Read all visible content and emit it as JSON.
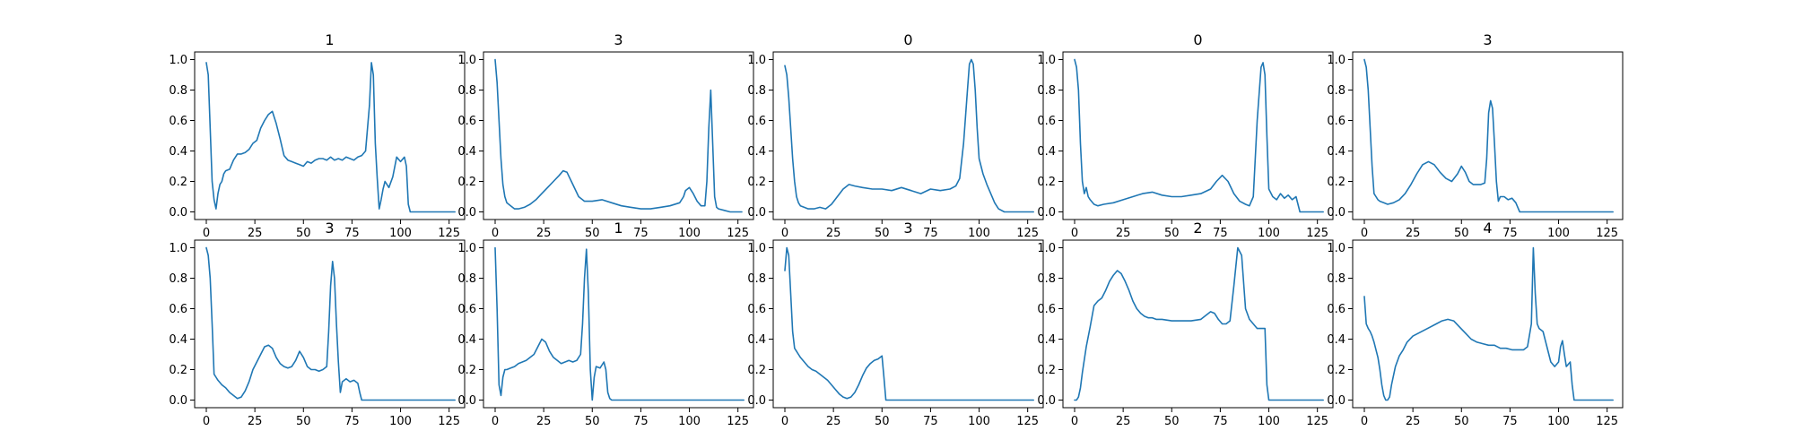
{
  "figure": {
    "line_color": "#1f77b4"
  },
  "chart_data": [
    {
      "type": "line",
      "title": "1",
      "xlim": [
        -6,
        133
      ],
      "ylim": [
        -0.05,
        1.05
      ],
      "x_ticks": [
        0,
        25,
        50,
        75,
        100,
        125
      ],
      "y_ticks": [
        0.0,
        0.2,
        0.4,
        0.6,
        0.8,
        1.0
      ],
      "x": [
        0,
        1,
        2,
        3,
        4,
        5,
        6,
        7,
        8,
        9,
        10,
        12,
        14,
        16,
        18,
        20,
        22,
        24,
        26,
        28,
        30,
        32,
        34,
        36,
        38,
        40,
        42,
        44,
        46,
        48,
        50,
        52,
        54,
        56,
        58,
        60,
        62,
        64,
        66,
        68,
        70,
        72,
        74,
        76,
        78,
        80,
        82,
        84,
        85,
        86,
        87,
        88,
        89,
        90,
        91,
        92,
        94,
        96,
        98,
        100,
        102,
        103,
        104,
        105,
        128
      ],
      "y": [
        0.98,
        0.9,
        0.55,
        0.2,
        0.08,
        0.02,
        0.12,
        0.18,
        0.2,
        0.25,
        0.27,
        0.28,
        0.34,
        0.38,
        0.38,
        0.39,
        0.41,
        0.45,
        0.47,
        0.55,
        0.6,
        0.64,
        0.66,
        0.58,
        0.48,
        0.37,
        0.34,
        0.33,
        0.32,
        0.31,
        0.3,
        0.33,
        0.32,
        0.34,
        0.35,
        0.35,
        0.34,
        0.36,
        0.34,
        0.35,
        0.34,
        0.36,
        0.35,
        0.34,
        0.36,
        0.37,
        0.4,
        0.7,
        0.98,
        0.9,
        0.45,
        0.22,
        0.02,
        0.08,
        0.15,
        0.2,
        0.16,
        0.23,
        0.36,
        0.33,
        0.36,
        0.3,
        0.05,
        0.0,
        0.0
      ]
    },
    {
      "type": "line",
      "title": "3",
      "xlim": [
        -6,
        133
      ],
      "ylim": [
        -0.05,
        1.05
      ],
      "x_ticks": [
        0,
        25,
        50,
        75,
        100,
        125
      ],
      "y_ticks": [
        0.0,
        0.2,
        0.4,
        0.6,
        0.8,
        1.0
      ],
      "x": [
        0,
        1,
        2,
        3,
        4,
        5,
        6,
        8,
        10,
        12,
        15,
        18,
        21,
        24,
        27,
        30,
        33,
        35,
        37,
        40,
        43,
        46,
        50,
        55,
        60,
        65,
        70,
        75,
        80,
        85,
        90,
        95,
        97,
        98,
        100,
        102,
        104,
        106,
        108,
        109,
        110,
        111,
        112,
        113,
        114,
        115,
        118,
        121,
        124,
        127
      ],
      "y": [
        1.0,
        0.85,
        0.6,
        0.35,
        0.18,
        0.1,
        0.06,
        0.04,
        0.02,
        0.02,
        0.03,
        0.05,
        0.08,
        0.12,
        0.16,
        0.2,
        0.24,
        0.27,
        0.26,
        0.18,
        0.1,
        0.07,
        0.07,
        0.08,
        0.06,
        0.04,
        0.03,
        0.02,
        0.02,
        0.03,
        0.04,
        0.06,
        0.1,
        0.14,
        0.16,
        0.12,
        0.07,
        0.04,
        0.04,
        0.2,
        0.55,
        0.8,
        0.45,
        0.1,
        0.03,
        0.02,
        0.01,
        0.0,
        0.0,
        0.0
      ]
    },
    {
      "type": "line",
      "title": "0",
      "xlim": [
        -6,
        133
      ],
      "ylim": [
        -0.05,
        1.05
      ],
      "x_ticks": [
        0,
        25,
        50,
        75,
        100,
        125
      ],
      "y_ticks": [
        0.0,
        0.2,
        0.4,
        0.6,
        0.8,
        1.0
      ],
      "x": [
        0,
        1,
        2,
        3,
        4,
        5,
        6,
        7,
        8,
        10,
        12,
        15,
        18,
        21,
        24,
        27,
        30,
        33,
        36,
        40,
        45,
        50,
        55,
        60,
        65,
        70,
        75,
        80,
        85,
        88,
        90,
        92,
        94,
        95,
        96,
        97,
        98,
        99,
        100,
        102,
        104,
        106,
        108,
        110,
        113,
        128
      ],
      "y": [
        0.96,
        0.9,
        0.75,
        0.55,
        0.35,
        0.2,
        0.1,
        0.06,
        0.04,
        0.03,
        0.02,
        0.02,
        0.03,
        0.02,
        0.05,
        0.1,
        0.15,
        0.18,
        0.17,
        0.16,
        0.15,
        0.15,
        0.14,
        0.16,
        0.14,
        0.12,
        0.15,
        0.14,
        0.15,
        0.17,
        0.22,
        0.45,
        0.8,
        0.97,
        1.0,
        0.97,
        0.8,
        0.55,
        0.35,
        0.25,
        0.18,
        0.12,
        0.06,
        0.02,
        0.0,
        0.0
      ]
    },
    {
      "type": "line",
      "title": "0",
      "xlim": [
        -6,
        133
      ],
      "ylim": [
        -0.05,
        1.05
      ],
      "x_ticks": [
        0,
        25,
        50,
        75,
        100,
        125
      ],
      "y_ticks": [
        0.0,
        0.2,
        0.4,
        0.6,
        0.8,
        1.0
      ],
      "x": [
        0,
        1,
        2,
        3,
        4,
        5,
        6,
        7,
        8,
        10,
        12,
        15,
        20,
        25,
        30,
        35,
        40,
        45,
        50,
        55,
        60,
        65,
        70,
        73,
        76,
        79,
        82,
        85,
        88,
        90,
        92,
        94,
        96,
        97,
        98,
        99,
        100,
        102,
        104,
        106,
        108,
        110,
        112,
        114,
        115,
        116,
        128
      ],
      "y": [
        1.0,
        0.95,
        0.8,
        0.45,
        0.2,
        0.12,
        0.16,
        0.1,
        0.08,
        0.05,
        0.04,
        0.05,
        0.06,
        0.08,
        0.1,
        0.12,
        0.13,
        0.11,
        0.1,
        0.1,
        0.11,
        0.12,
        0.15,
        0.2,
        0.24,
        0.2,
        0.12,
        0.07,
        0.05,
        0.04,
        0.1,
        0.6,
        0.95,
        0.98,
        0.9,
        0.5,
        0.15,
        0.1,
        0.08,
        0.12,
        0.09,
        0.11,
        0.08,
        0.1,
        0.05,
        0.0,
        0.0
      ]
    },
    {
      "type": "line",
      "title": "3",
      "xlim": [
        -6,
        133
      ],
      "ylim": [
        -0.05,
        1.05
      ],
      "x_ticks": [
        0,
        25,
        50,
        75,
        100,
        125
      ],
      "y_ticks": [
        0.0,
        0.2,
        0.4,
        0.6,
        0.8,
        1.0
      ],
      "x": [
        0,
        1,
        2,
        3,
        4,
        5,
        6,
        7,
        8,
        10,
        12,
        15,
        18,
        21,
        24,
        27,
        30,
        33,
        36,
        39,
        42,
        45,
        48,
        50,
        52,
        54,
        56,
        58,
        60,
        62,
        63,
        64,
        65,
        66,
        67,
        68,
        69,
        70,
        72,
        74,
        76,
        78,
        79,
        80,
        128
      ],
      "y": [
        1.0,
        0.95,
        0.8,
        0.55,
        0.3,
        0.12,
        0.1,
        0.08,
        0.07,
        0.06,
        0.05,
        0.06,
        0.08,
        0.12,
        0.18,
        0.25,
        0.31,
        0.33,
        0.31,
        0.26,
        0.22,
        0.2,
        0.25,
        0.3,
        0.26,
        0.2,
        0.18,
        0.18,
        0.18,
        0.19,
        0.35,
        0.65,
        0.73,
        0.68,
        0.45,
        0.2,
        0.07,
        0.1,
        0.1,
        0.08,
        0.09,
        0.06,
        0.03,
        0.0,
        0.0
      ]
    },
    {
      "type": "line",
      "title": "3",
      "xlim": [
        -6,
        133
      ],
      "ylim": [
        -0.05,
        1.05
      ],
      "x_ticks": [
        0,
        25,
        50,
        75,
        100,
        125
      ],
      "y_ticks": [
        0.0,
        0.2,
        0.4,
        0.6,
        0.8,
        1.0
      ],
      "x": [
        0,
        1,
        2,
        3,
        4,
        5,
        6,
        8,
        10,
        12,
        14,
        16,
        18,
        20,
        22,
        24,
        26,
        28,
        30,
        32,
        34,
        36,
        38,
        40,
        42,
        44,
        46,
        48,
        50,
        52,
        54,
        56,
        58,
        60,
        62,
        63,
        64,
        65,
        66,
        67,
        68,
        69,
        70,
        72,
        74,
        76,
        78,
        79,
        80,
        128
      ],
      "y": [
        1.0,
        0.95,
        0.8,
        0.5,
        0.17,
        0.15,
        0.13,
        0.1,
        0.08,
        0.05,
        0.03,
        0.01,
        0.02,
        0.06,
        0.12,
        0.2,
        0.25,
        0.3,
        0.35,
        0.36,
        0.34,
        0.28,
        0.24,
        0.22,
        0.21,
        0.22,
        0.26,
        0.32,
        0.28,
        0.22,
        0.2,
        0.2,
        0.19,
        0.2,
        0.22,
        0.45,
        0.75,
        0.91,
        0.8,
        0.5,
        0.25,
        0.05,
        0.12,
        0.14,
        0.12,
        0.13,
        0.11,
        0.05,
        0.0,
        0.0
      ]
    },
    {
      "type": "line",
      "title": "1",
      "xlim": [
        -6,
        133
      ],
      "ylim": [
        -0.05,
        1.05
      ],
      "x_ticks": [
        0,
        25,
        50,
        75,
        100,
        125
      ],
      "y_ticks": [
        0.0,
        0.2,
        0.4,
        0.6,
        0.8,
        1.0
      ],
      "x": [
        0,
        1,
        2,
        3,
        4,
        5,
        6,
        8,
        10,
        12,
        14,
        16,
        18,
        20,
        22,
        24,
        26,
        28,
        30,
        32,
        34,
        36,
        38,
        40,
        42,
        44,
        45,
        46,
        47,
        48,
        49,
        50,
        51,
        52,
        54,
        56,
        57,
        58,
        59,
        60,
        128
      ],
      "y": [
        1.0,
        0.6,
        0.1,
        0.03,
        0.15,
        0.2,
        0.2,
        0.21,
        0.22,
        0.24,
        0.25,
        0.26,
        0.28,
        0.3,
        0.35,
        0.4,
        0.38,
        0.32,
        0.28,
        0.26,
        0.24,
        0.25,
        0.26,
        0.25,
        0.26,
        0.3,
        0.5,
        0.8,
        0.99,
        0.7,
        0.2,
        0.0,
        0.15,
        0.22,
        0.21,
        0.25,
        0.2,
        0.05,
        0.01,
        0.0,
        0.0
      ]
    },
    {
      "type": "line",
      "title": "3",
      "xlim": [
        -6,
        133
      ],
      "ylim": [
        -0.05,
        1.05
      ],
      "x_ticks": [
        0,
        25,
        50,
        75,
        100,
        125
      ],
      "y_ticks": [
        0.0,
        0.2,
        0.4,
        0.6,
        0.8,
        1.0
      ],
      "x": [
        0,
        1,
        2,
        3,
        4,
        5,
        6,
        8,
        10,
        12,
        14,
        16,
        18,
        20,
        22,
        24,
        26,
        28,
        30,
        32,
        34,
        36,
        38,
        40,
        42,
        44,
        46,
        48,
        50,
        51,
        52,
        128
      ],
      "y": [
        0.85,
        1.0,
        0.95,
        0.7,
        0.45,
        0.34,
        0.32,
        0.28,
        0.25,
        0.22,
        0.2,
        0.19,
        0.17,
        0.15,
        0.13,
        0.1,
        0.07,
        0.04,
        0.02,
        0.01,
        0.02,
        0.05,
        0.1,
        0.16,
        0.21,
        0.24,
        0.26,
        0.27,
        0.29,
        0.15,
        0.0,
        0.0
      ]
    },
    {
      "type": "line",
      "title": "2",
      "xlim": [
        -6,
        133
      ],
      "ylim": [
        -0.05,
        1.05
      ],
      "x_ticks": [
        0,
        25,
        50,
        75,
        100,
        125
      ],
      "y_ticks": [
        0.0,
        0.2,
        0.4,
        0.6,
        0.8,
        1.0
      ],
      "x": [
        0,
        1,
        2,
        3,
        4,
        6,
        8,
        10,
        12,
        14,
        16,
        18,
        20,
        22,
        24,
        26,
        28,
        30,
        32,
        34,
        36,
        38,
        40,
        42,
        45,
        50,
        55,
        60,
        65,
        70,
        72,
        74,
        76,
        78,
        80,
        82,
        84,
        86,
        88,
        90,
        92,
        94,
        96,
        98,
        99,
        100,
        128
      ],
      "y": [
        0.0,
        0.0,
        0.02,
        0.08,
        0.18,
        0.35,
        0.48,
        0.62,
        0.65,
        0.67,
        0.72,
        0.78,
        0.82,
        0.85,
        0.83,
        0.78,
        0.72,
        0.65,
        0.6,
        0.57,
        0.55,
        0.54,
        0.54,
        0.53,
        0.53,
        0.52,
        0.52,
        0.52,
        0.53,
        0.58,
        0.57,
        0.53,
        0.5,
        0.5,
        0.52,
        0.75,
        1.0,
        0.95,
        0.6,
        0.53,
        0.5,
        0.47,
        0.47,
        0.47,
        0.1,
        0.0,
        0.0
      ]
    },
    {
      "type": "line",
      "title": "4",
      "xlim": [
        -6,
        133
      ],
      "ylim": [
        -0.05,
        1.05
      ],
      "x_ticks": [
        0,
        25,
        50,
        75,
        100,
        125
      ],
      "y_ticks": [
        0.0,
        0.2,
        0.4,
        0.6,
        0.8,
        1.0
      ],
      "x": [
        0,
        1,
        2,
        3,
        4,
        5,
        6,
        7,
        8,
        9,
        10,
        11,
        12,
        13,
        14,
        16,
        18,
        20,
        22,
        25,
        28,
        31,
        34,
        37,
        40,
        43,
        46,
        49,
        52,
        55,
        58,
        61,
        64,
        67,
        70,
        73,
        76,
        79,
        82,
        84,
        86,
        87,
        88,
        89,
        90,
        92,
        94,
        96,
        98,
        100,
        101,
        102,
        103,
        104,
        106,
        107,
        108,
        128
      ],
      "y": [
        0.68,
        0.5,
        0.47,
        0.45,
        0.42,
        0.38,
        0.33,
        0.28,
        0.2,
        0.1,
        0.03,
        0.0,
        0.0,
        0.02,
        0.1,
        0.22,
        0.29,
        0.33,
        0.38,
        0.42,
        0.44,
        0.46,
        0.48,
        0.5,
        0.52,
        0.53,
        0.52,
        0.48,
        0.44,
        0.4,
        0.38,
        0.37,
        0.36,
        0.36,
        0.34,
        0.34,
        0.33,
        0.33,
        0.33,
        0.35,
        0.5,
        1.0,
        0.7,
        0.5,
        0.47,
        0.45,
        0.35,
        0.25,
        0.22,
        0.25,
        0.35,
        0.39,
        0.3,
        0.22,
        0.25,
        0.1,
        0.0,
        0.0
      ]
    }
  ]
}
